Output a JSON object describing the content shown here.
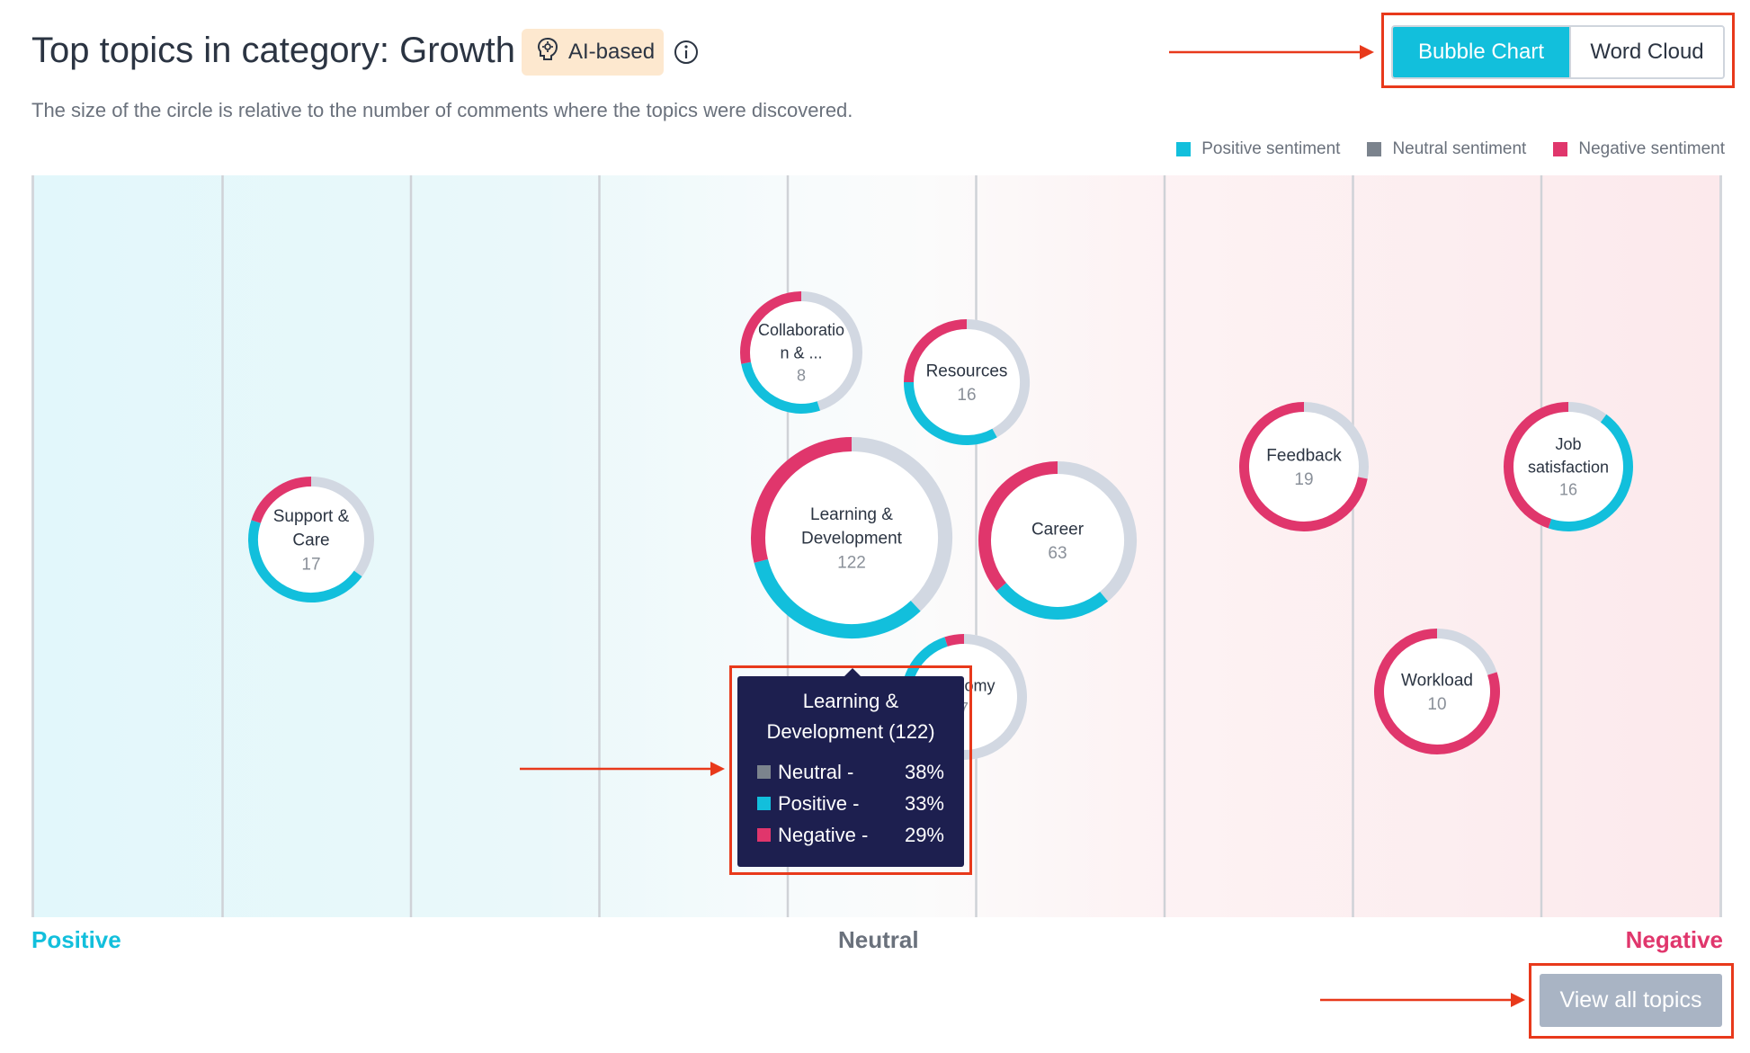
{
  "header": {
    "title": "Top topics in category: Growth",
    "badge_label": "AI-based",
    "subtitle": "The size of the circle is relative to the number of comments where the topics were discovered."
  },
  "view_toggle": {
    "options": [
      "Bubble Chart",
      "Word Cloud"
    ],
    "selected": "Bubble Chart"
  },
  "colors": {
    "positive": "#12bfdc",
    "neutral": "#d2d8e2",
    "neutral_swatch": "#7b838d",
    "negative": "#e0366c",
    "accent_annotation": "#e8391b"
  },
  "legend": [
    {
      "label": "Positive sentiment",
      "color": "#12bfdc"
    },
    {
      "label": "Neutral sentiment",
      "color": "#7b838d"
    },
    {
      "label": "Negative sentiment",
      "color": "#e0366c"
    }
  ],
  "axis": {
    "left_label": "Positive",
    "center_label": "Neutral",
    "right_label": "Negative"
  },
  "topics": [
    {
      "name": "Collaboratio n & ...",
      "lines": [
        "Collaboratio",
        "n & ..."
      ],
      "count": 8,
      "negative": 0.28,
      "positive": 0.27
    },
    {
      "name": "Resources",
      "lines": [
        "Resources"
      ],
      "count": 16,
      "negative": 0.25,
      "positive": 0.33
    },
    {
      "name": "Support & Care",
      "lines": [
        "Support &",
        "Care"
      ],
      "count": 17,
      "negative": 0.2,
      "positive": 0.45
    },
    {
      "name": "Learning & Development",
      "lines": [
        "Learning &",
        "Development"
      ],
      "count": 122,
      "negative": 0.29,
      "positive": 0.33
    },
    {
      "name": "Career",
      "lines": [
        "Career"
      ],
      "count": 63,
      "negative": 0.36,
      "positive": 0.25
    },
    {
      "name": "Feedback",
      "lines": [
        "Feedback"
      ],
      "count": 19,
      "negative": 0.72,
      "positive": 0.0
    },
    {
      "name": "Job satisfaction",
      "lines": [
        "Job",
        "satisfaction"
      ],
      "count": 16,
      "negative": 0.45,
      "positive": 0.45
    },
    {
      "name": "Autonomy",
      "lines": [
        "...onomy"
      ],
      "count": 7,
      "negative": 0.05,
      "positive": 0.25
    },
    {
      "name": "Workload",
      "lines": [
        "Workload"
      ],
      "count": 10,
      "negative": 0.8,
      "positive": 0.0
    }
  ],
  "tooltip": {
    "title": "Learning & Development (122)",
    "rows": [
      {
        "label": "Neutral -",
        "value": "38%",
        "color": "#7b838d"
      },
      {
        "label": "Positive -",
        "value": "33%",
        "color": "#12bfdc"
      },
      {
        "label": "Negative -",
        "value": "29%",
        "color": "#e0366c"
      }
    ]
  },
  "view_all_label": "View all topics"
}
